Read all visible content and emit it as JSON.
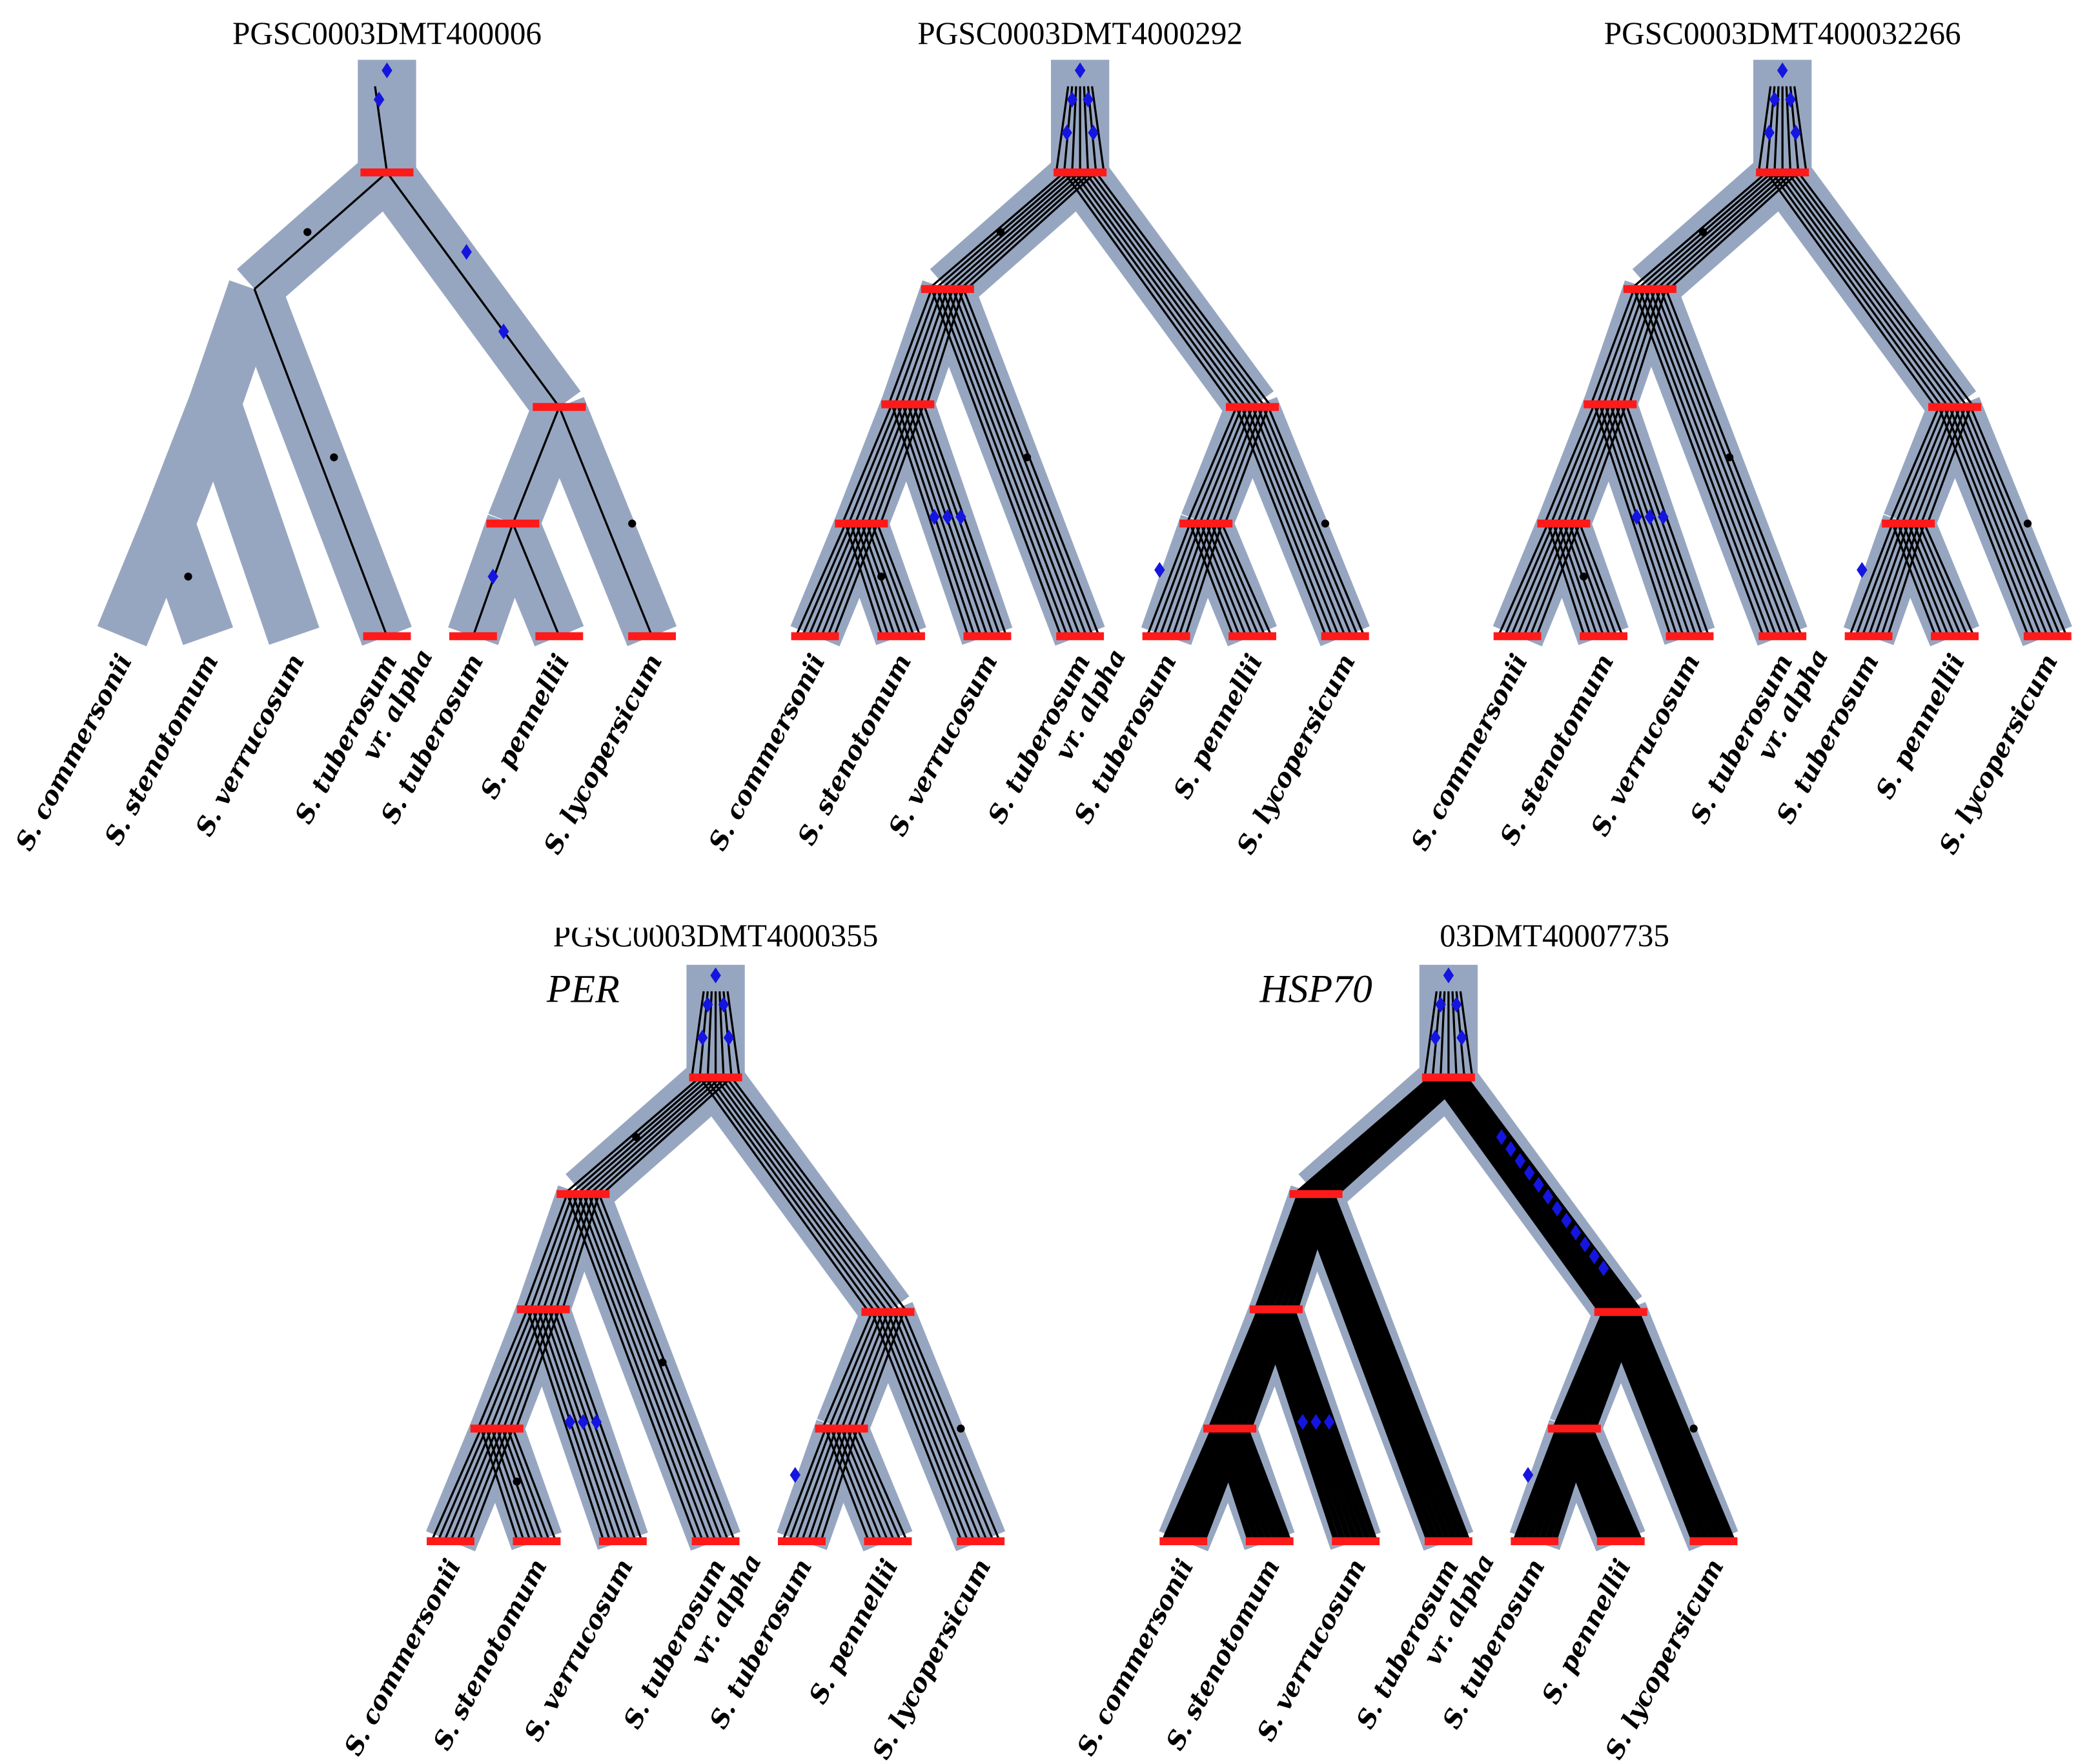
{
  "panels": [
    {
      "title": "PGSC0003DMT400006",
      "species": [
        "S. commersonii",
        "S. stenotomum",
        "S. verrucosum",
        [
          "S. tuberosum",
          "vr. alpha"
        ],
        "S. tuberosum",
        "S. pennellii",
        "S. lycopersicum"
      ]
    },
    {
      "title": "PGSC0003DMT4000292",
      "species": [
        "S. commersonii",
        "S. stenotomum",
        "S. verrucosum",
        [
          "S. tuberosum",
          "vr. alpha"
        ],
        "S. tuberosum",
        "S. pennellii",
        "S. lycopersicum"
      ]
    },
    {
      "title": "PGSC0003DMT400032266",
      "species": [
        "S. commersonii",
        "S. stenotomum",
        "S. verrucosum",
        [
          "S. tuberosum",
          "vr. alpha"
        ],
        "S. tuberosum",
        "S. pennellii",
        "S. lycopersicum"
      ]
    },
    {
      "title": "PGSC0003DMT4000355",
      "gene": "PER",
      "species": [
        "S. commersonii",
        "S. stenotomum",
        "S. verrucosum",
        [
          "S. tuberosum",
          "vr. alpha"
        ],
        "S. tuberosum",
        "S. pennellii",
        "S. lycopersicum"
      ]
    },
    {
      "title": "03DMT40007735",
      "gene": "HSP70",
      "species": [
        "S. commersonii",
        "S. stenotomum",
        "S. verrucosum",
        [
          "S. tuberosum",
          "vr. alpha"
        ],
        "S. tuberosum",
        "S. pennellii",
        "S. lycopersicum"
      ]
    }
  ]
}
